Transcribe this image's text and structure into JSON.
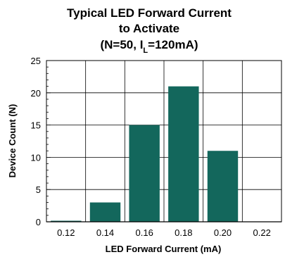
{
  "chart_data": {
    "type": "bar",
    "title_line1": "Typical LED Forward Current",
    "title_line2": "to Activate",
    "title_line3_prefix": "(N=50, I",
    "title_line3_sub": "L",
    "title_line3_suffix": "=120mA)",
    "xlabel": "LED Forward Current (mA)",
    "ylabel": "Device Count (N)",
    "categories": [
      "0.12",
      "0.14",
      "0.16",
      "0.18",
      "0.20",
      "0.22"
    ],
    "values": [
      0,
      3,
      15,
      21,
      11,
      0
    ],
    "ylim": [
      0,
      25
    ],
    "yticks": [
      "0",
      "5",
      "10",
      "15",
      "20",
      "25"
    ],
    "grid": true,
    "bar_color": "#13675c"
  }
}
